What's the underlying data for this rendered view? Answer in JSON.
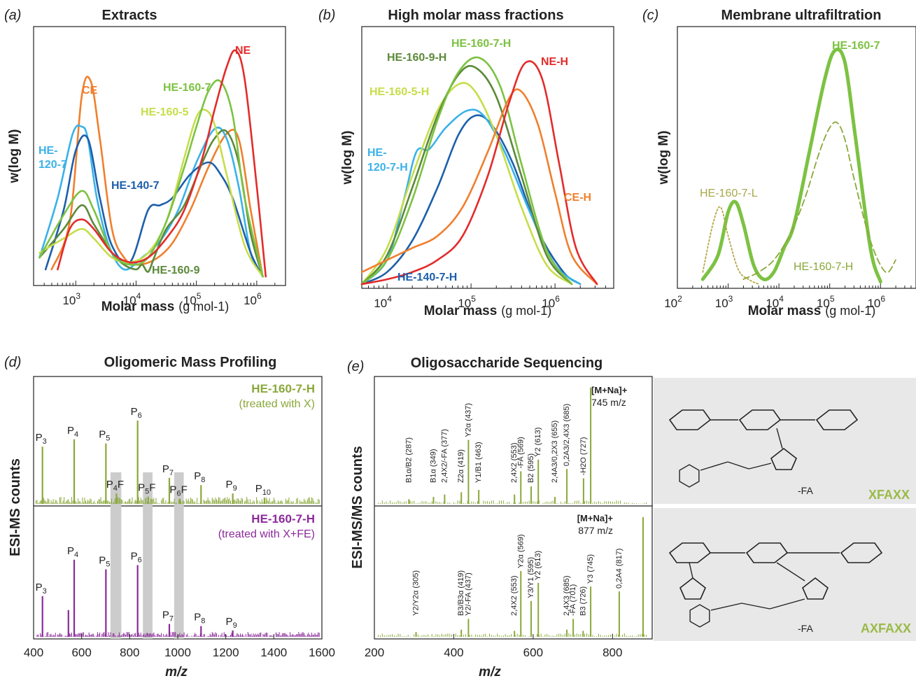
{
  "panels": {
    "a": {
      "label": "(a)",
      "title": "Extracts"
    },
    "b": {
      "label": "(b)",
      "title": "High molar mass fractions"
    },
    "c": {
      "label": "(c)",
      "title": "Membrane ultrafiltration"
    },
    "d": {
      "label": "(d)",
      "title": "Oligomeric Mass Profiling"
    },
    "e": {
      "label": "(e)",
      "title": "Oligosaccharide Sequencing"
    }
  },
  "axes": {
    "ylabel_top": "w(log M)",
    "xlabel_top_main": "Molar mass",
    "xlabel_top_unit": "(g mol-1)",
    "ylabel_d": "ESI-MS counts",
    "ylabel_e": "ESI-MS/MS counts",
    "xlabel_mz": "m/z"
  },
  "colors": {
    "NE": "#e32b2b",
    "CE": "#f07f2d",
    "HE-160-7": "#7cc242",
    "HE-160-5": "#c7dd4a",
    "HE-120-7": "#3ab2e8",
    "HE-140-7": "#1d5fab",
    "HE-160-9": "#5b8a3a",
    "olive": "#8aa83a",
    "purple": "#8b2a9a",
    "gray_band": "#cccccc",
    "structure_bg": "#e8e8e8"
  },
  "chart_data": [
    {
      "type": "line",
      "panel": "a",
      "title": "Extracts",
      "xlabel": "Molar mass (g mol-1)",
      "ylabel": "w(log M)",
      "xscale": "log",
      "xlim": [
        200,
        3000000
      ],
      "ylim": [
        0,
        1
      ],
      "xticks": [
        "10^3",
        "10^4",
        "10^5",
        "10^6"
      ],
      "series": [
        {
          "name": "CE",
          "color": "#f07f2d",
          "lx": [
            2.6,
            2.9,
            3.1,
            3.25,
            3.4,
            3.6,
            3.8,
            4.0,
            4.3,
            4.6,
            4.9,
            5.2,
            5.5,
            5.7,
            5.9,
            6.1
          ],
          "y": [
            0.05,
            0.25,
            0.78,
            0.84,
            0.6,
            0.22,
            0.1,
            0.07,
            0.09,
            0.16,
            0.3,
            0.48,
            0.62,
            0.6,
            0.3,
            0.02
          ]
        },
        {
          "name": "HE-120-7",
          "color": "#3ab2e8",
          "lx": [
            2.4,
            2.7,
            2.95,
            3.1,
            3.2,
            3.35,
            3.55,
            3.8,
            4.1,
            4.4,
            4.7,
            5.0,
            5.3,
            5.5,
            5.7,
            5.9,
            6.1
          ],
          "y": [
            0.1,
            0.35,
            0.62,
            0.65,
            0.6,
            0.35,
            0.15,
            0.05,
            0.1,
            0.17,
            0.3,
            0.5,
            0.64,
            0.6,
            0.4,
            0.12,
            0.02
          ]
        },
        {
          "name": "HE-140-7",
          "color": "#1d5fab",
          "lx": [
            2.5,
            2.8,
            3.0,
            3.2,
            3.4,
            3.6,
            3.9,
            4.2,
            4.4,
            4.6,
            4.9,
            5.2,
            5.4,
            5.6,
            5.9,
            6.1
          ],
          "y": [
            0.05,
            0.3,
            0.55,
            0.6,
            0.35,
            0.15,
            0.08,
            0.3,
            0.32,
            0.35,
            0.45,
            0.5,
            0.45,
            0.35,
            0.12,
            0.02
          ]
        },
        {
          "name": "HE-160-9",
          "color": "#5b8a3a",
          "lx": [
            2.4,
            2.8,
            3.1,
            3.3,
            3.6,
            3.8,
            4.0,
            4.1,
            4.2,
            4.3,
            4.5,
            4.8,
            5.1,
            5.3,
            5.5,
            5.7,
            5.9,
            6.1
          ],
          "y": [
            0.1,
            0.22,
            0.32,
            0.24,
            0.12,
            0.07,
            0.05,
            0.07,
            0.04,
            0.1,
            0.22,
            0.32,
            0.5,
            0.6,
            0.63,
            0.5,
            0.2,
            0.02
          ]
        },
        {
          "name": "HE-160-5",
          "color": "#c7dd4a",
          "lx": [
            2.4,
            2.8,
            3.1,
            3.3,
            3.6,
            3.9,
            4.2,
            4.5,
            4.8,
            5.0,
            5.15,
            5.3,
            5.5,
            5.8,
            6.1
          ],
          "y": [
            0.12,
            0.18,
            0.22,
            0.18,
            0.1,
            0.08,
            0.12,
            0.25,
            0.52,
            0.69,
            0.72,
            0.66,
            0.45,
            0.15,
            0.02
          ]
        },
        {
          "name": "HE-160-7",
          "color": "#7cc242",
          "lx": [
            2.4,
            2.8,
            3.1,
            3.3,
            3.6,
            3.9,
            4.2,
            4.5,
            4.8,
            5.0,
            5.2,
            5.4,
            5.6,
            5.8,
            6.1
          ],
          "y": [
            0.1,
            0.28,
            0.38,
            0.3,
            0.12,
            0.07,
            0.1,
            0.25,
            0.48,
            0.65,
            0.8,
            0.84,
            0.7,
            0.35,
            0.02
          ]
        },
        {
          "name": "NE",
          "color": "#e32b2b",
          "lx": [
            2.7,
            2.9,
            3.1,
            3.3,
            3.6,
            3.9,
            4.2,
            4.5,
            4.8,
            5.1,
            5.3,
            5.5,
            5.65,
            5.8,
            6.0,
            6.15
          ],
          "y": [
            0.05,
            0.22,
            0.26,
            0.22,
            0.12,
            0.08,
            0.1,
            0.18,
            0.3,
            0.52,
            0.72,
            0.9,
            0.97,
            0.85,
            0.4,
            0.02
          ]
        }
      ]
    },
    {
      "type": "line",
      "panel": "b",
      "title": "High molar mass fractions",
      "xlabel": "Molar mass (g mol-1)",
      "ylabel": "w(log M)",
      "xscale": "log",
      "xlim": [
        5000,
        5000000
      ],
      "ylim": [
        0,
        1
      ],
      "xticks": [
        "10^4",
        "10^5",
        "10^6"
      ],
      "series": [
        {
          "name": "HE-140-7-H",
          "color": "#1d5fab",
          "lx": [
            3.7,
            4.0,
            4.3,
            4.6,
            4.85,
            5.05,
            5.25,
            5.5,
            5.8,
            6.1,
            6.3
          ],
          "y": [
            0.0,
            0.05,
            0.18,
            0.4,
            0.62,
            0.7,
            0.66,
            0.5,
            0.22,
            0.05,
            0.0
          ]
        },
        {
          "name": "HE-120-7-H",
          "color": "#3ab2e8",
          "lx": [
            3.7,
            4.0,
            4.2,
            4.35,
            4.5,
            4.7,
            4.95,
            5.15,
            5.4,
            5.7,
            6.0,
            6.3
          ],
          "y": [
            0.0,
            0.1,
            0.35,
            0.55,
            0.56,
            0.65,
            0.72,
            0.7,
            0.55,
            0.3,
            0.08,
            0.0
          ]
        },
        {
          "name": "HE-160-5-H",
          "color": "#c7dd4a",
          "lx": [
            3.7,
            4.0,
            4.3,
            4.6,
            4.85,
            5.05,
            5.3,
            5.6,
            5.9,
            6.2
          ],
          "y": [
            0.0,
            0.15,
            0.45,
            0.72,
            0.83,
            0.8,
            0.62,
            0.32,
            0.08,
            0.0
          ]
        },
        {
          "name": "HE-160-9-H",
          "color": "#5b8a3a",
          "lx": [
            3.7,
            4.0,
            4.3,
            4.6,
            4.85,
            5.05,
            5.3,
            5.6,
            5.9,
            6.2
          ],
          "y": [
            0.0,
            0.12,
            0.4,
            0.7,
            0.87,
            0.9,
            0.78,
            0.45,
            0.12,
            0.0
          ]
        },
        {
          "name": "HE-160-7-H",
          "color": "#7cc242",
          "lx": [
            3.7,
            4.0,
            4.3,
            4.6,
            4.85,
            5.1,
            5.35,
            5.6,
            5.9,
            6.2
          ],
          "y": [
            0.0,
            0.1,
            0.35,
            0.68,
            0.88,
            0.94,
            0.82,
            0.5,
            0.14,
            0.0
          ]
        },
        {
          "name": "CE-H",
          "color": "#f07f2d",
          "lx": [
            3.7,
            4.0,
            4.3,
            4.6,
            4.9,
            5.2,
            5.45,
            5.6,
            5.8,
            6.0,
            6.2,
            6.5
          ],
          "y": [
            0.05,
            0.1,
            0.15,
            0.2,
            0.32,
            0.55,
            0.77,
            0.8,
            0.66,
            0.38,
            0.12,
            0.0
          ]
        },
        {
          "name": "NE-H",
          "color": "#e32b2b",
          "lx": [
            3.7,
            4.0,
            4.3,
            4.6,
            4.9,
            5.2,
            5.45,
            5.65,
            5.85,
            6.05,
            6.25,
            6.5
          ],
          "y": [
            0.0,
            0.02,
            0.05,
            0.1,
            0.2,
            0.45,
            0.75,
            0.92,
            0.85,
            0.5,
            0.15,
            0.0
          ]
        }
      ]
    },
    {
      "type": "line",
      "panel": "c",
      "title": "Membrane ultrafiltration",
      "xlabel": "Molar mass (g mol-1)",
      "ylabel": "w(log M)",
      "xscale": "log",
      "xlim": [
        100,
        5000000
      ],
      "ylim": [
        0,
        1
      ],
      "xticks": [
        "10^2",
        "10^3",
        "10^4",
        "10^5",
        "10^6"
      ],
      "series": [
        {
          "name": "HE-160-7",
          "color": "#7cc242",
          "lx": [
            2.5,
            2.8,
            3.0,
            3.15,
            3.3,
            3.5,
            3.7,
            3.9,
            4.1,
            4.3,
            4.6,
            4.9,
            5.1,
            5.3,
            5.5,
            5.8,
            6.0
          ],
          "y": [
            0.02,
            0.12,
            0.3,
            0.34,
            0.25,
            0.08,
            0.02,
            0.05,
            0.15,
            0.25,
            0.55,
            0.85,
            0.97,
            0.92,
            0.62,
            0.15,
            0.01
          ]
        },
        {
          "name": "HE-160-7-L",
          "color": "#8aa83a",
          "dash": "dot",
          "lx": [
            2.5,
            2.7,
            2.85,
            3.0,
            3.2,
            3.4,
            3.6
          ],
          "y": [
            0.05,
            0.25,
            0.32,
            0.2,
            0.06,
            0.02,
            0.0
          ]
        },
        {
          "name": "HE-160-7-H",
          "color": "#8aa83a",
          "dash": "dash",
          "lx": [
            3.3,
            3.6,
            3.9,
            4.2,
            4.5,
            4.8,
            5.0,
            5.15,
            5.3,
            5.5,
            5.8,
            6.1,
            6.3
          ],
          "y": [
            0.02,
            0.05,
            0.1,
            0.2,
            0.35,
            0.55,
            0.65,
            0.67,
            0.6,
            0.42,
            0.18,
            0.05,
            0.1
          ]
        }
      ]
    },
    {
      "type": "bar",
      "panel": "d",
      "title": "Oligomeric Mass Profiling",
      "xlabel": "m/z",
      "ylabel": "ESI-MS counts",
      "xlim": [
        400,
        1600
      ],
      "xticks": [
        400,
        600,
        800,
        1000,
        1200,
        1400,
        1600
      ],
      "shaded_bands": [
        [
          720,
          765
        ],
        [
          855,
          895
        ],
        [
          985,
          1025
        ]
      ],
      "series": [
        {
          "name": "HE-160-7-H (treated with X)",
          "color": "#8aa83a",
          "peaks": [
            [
              437,
              0.55
            ],
            [
              569,
              0.62
            ],
            [
              701,
              0.58
            ],
            [
              833,
              0.8
            ],
            [
              965,
              0.25
            ],
            [
              1097,
              0.18
            ],
            [
              1229,
              0.1
            ],
            [
              1361,
              0.06
            ],
            [
              745,
              0.1
            ],
            [
              877,
              0.07
            ],
            [
              1009,
              0.05
            ]
          ],
          "labels": [
            "P3",
            "P4",
            "P5",
            "P6",
            "P7",
            "P8",
            "P9",
            "P10",
            "P4F",
            "P5F",
            "P6F"
          ]
        },
        {
          "name": "HE-160-7-H (treated with X+FE)",
          "color": "#8b2a9a",
          "peaks": [
            [
              437,
              0.38
            ],
            [
              569,
              0.72
            ],
            [
              701,
              0.63
            ],
            [
              833,
              0.67
            ],
            [
              965,
              0.12
            ],
            [
              1097,
              0.1
            ],
            [
              1229,
              0.06
            ],
            [
              545,
              0.25
            ]
          ],
          "labels": [
            "P3",
            "P4",
            "P5",
            "P6",
            "P7",
            "P8",
            "P9"
          ]
        }
      ]
    },
    {
      "type": "bar",
      "panel": "e",
      "title": "Oligosaccharide Sequencing",
      "xlabel": "m/z",
      "ylabel": "ESI-MS/MS counts",
      "xlim": [
        200,
        900
      ],
      "xticks": [
        200,
        400,
        600,
        800
      ],
      "series": [
        {
          "name": "XFAXX",
          "precursor": "[M+Na]+",
          "precursor_mz": "745 m/z",
          "color": "#8aa83a",
          "peaks": [
            [
              287,
              0.04
            ],
            [
              349,
              0.06
            ],
            [
              377,
              0.08
            ],
            [
              419,
              0.1
            ],
            [
              437,
              0.55
            ],
            [
              463,
              0.12
            ],
            [
              553,
              0.08
            ],
            [
              569,
              0.28
            ],
            [
              595,
              0.15
            ],
            [
              613,
              0.38
            ],
            [
              655,
              0.06
            ],
            [
              685,
              0.3
            ],
            [
              727,
              0.22
            ],
            [
              745,
              1.0
            ]
          ],
          "labels": [
            "B1α/B2 (287)",
            "B1α (349)",
            "2,4X2/-FA (377)",
            "Z2α (419)",
            "Y2α (437)",
            "Y1/B1 (463)",
            "2,4X2 (553)",
            "-FA (569)",
            "B2 (595)",
            "Y2 (613)",
            "2,4A3/0,2X3 (655)",
            "0,2A3/2,4X3 (685)",
            "-H2O (727)"
          ]
        },
        {
          "name": "AXFAXX",
          "precursor": "[M+Na]+",
          "precursor_mz": "877 m/z",
          "color": "#8aa83a",
          "peaks": [
            [
              305,
              0.04
            ],
            [
              419,
              0.06
            ],
            [
              437,
              0.15
            ],
            [
              553,
              0.05
            ],
            [
              569,
              0.55
            ],
            [
              595,
              0.3
            ],
            [
              613,
              0.45
            ],
            [
              685,
              0.06
            ],
            [
              701,
              0.15
            ],
            [
              726,
              0.05
            ],
            [
              745,
              0.42
            ],
            [
              817,
              0.38
            ],
            [
              877,
              1.0
            ]
          ],
          "labels": [
            "Y2/Y2α (305)",
            "B3/B3α (419)",
            "Y2/-FA (437)",
            "2,4X2 (553)",
            "Y2α (569)",
            "Y3/Y1 (595)",
            "Y2 (613)",
            "2,4X3 (685)",
            "-FA (701)",
            "B3 (726)",
            "Y3 (745)",
            "0,2A4 (817)"
          ]
        }
      ]
    }
  ],
  "text": {
    "a_labels": {
      "NE": "NE",
      "CE": "CE",
      "HE-160-7": "HE-160-7",
      "HE-160-5": "HE-160-5",
      "HE-120-7a": "HE-",
      "HE-120-7b": "120-7",
      "HE-140-7": "HE-140-7",
      "HE-160-9": "HE-160-9"
    },
    "b_labels": {
      "HE-160-7-H": "HE-160-7-H",
      "HE-160-9-H": "HE-160-9-H",
      "NE-H": "NE-H",
      "HE-160-5-H": "HE-160-5-H",
      "HE-120-7-Ha": "HE-",
      "HE-120-7-Hb": "120-7-H",
      "CE-H": "CE-H",
      "HE-140-7-H": "HE-140-7-H"
    },
    "c_labels": {
      "HE-160-7": "HE-160-7",
      "HE-160-7-L": "HE-160-7-L",
      "HE-160-7-H": "HE-160-7-H"
    },
    "d_top_name": "HE-160-7-H",
    "d_top_treat": "(treated with X)",
    "d_bot_name": "HE-160-7-H",
    "d_bot_treat": "(treated with X+FE)",
    "e_top_struct": "XFAXX",
    "e_bot_struct": "AXFAXX",
    "e_top_prec": "[M+Na]+",
    "e_top_mz": "745 m/z",
    "e_bot_prec": "[M+Na]+",
    "e_bot_mz": "877 m/z",
    "fa_label": "-FA"
  }
}
